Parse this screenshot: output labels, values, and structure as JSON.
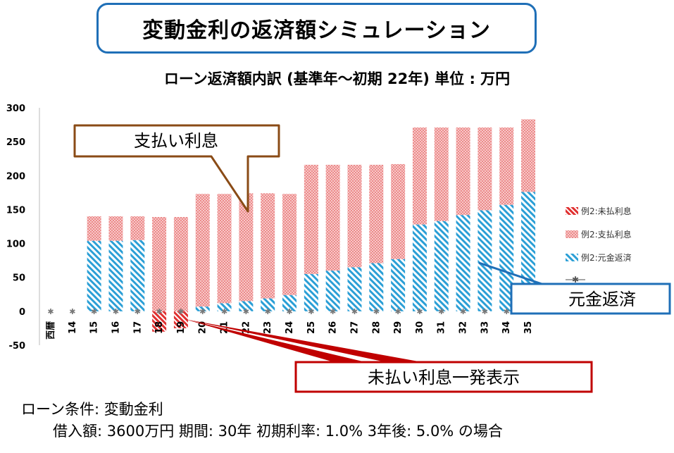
{
  "header": {
    "title": "変動金利の返済額シミュレーション"
  },
  "chart_data": {
    "type": "bar",
    "title": "ローン返済額内訳 (基準年～初期 22年) 単位 : 万円",
    "categories": [
      "西暦",
      "14",
      "15",
      "16",
      "17",
      "18",
      "19",
      "20",
      "21",
      "22",
      "23",
      "24",
      "25",
      "26",
      "27",
      "28",
      "29",
      "30",
      "31",
      "32",
      "33",
      "34",
      "35"
    ],
    "ylim": [
      -50,
      300
    ],
    "yticks": [
      -50,
      0,
      50,
      100,
      150,
      200,
      250,
      300
    ],
    "grid": false,
    "legend_position": "right",
    "series": [
      {
        "name": "例2:未払利息",
        "color": "#e03030",
        "pattern": "dense-diagonal",
        "values": [
          0,
          0,
          0,
          0,
          0,
          -30,
          -25,
          0,
          0,
          0,
          0,
          0,
          0,
          0,
          0,
          0,
          0,
          0,
          0,
          0,
          0,
          0,
          0
        ]
      },
      {
        "name": "例2:支払利息",
        "color": "#f2aaaa",
        "pattern": "dotted",
        "values": [
          0,
          0,
          36,
          36,
          35,
          139,
          139,
          166,
          161,
          159,
          155,
          149,
          161,
          156,
          151,
          145,
          140,
          143,
          138,
          129,
          122,
          114,
          107
        ]
      },
      {
        "name": "例2:元金返済",
        "color": "#2b9fd6",
        "pattern": "diagonal",
        "values": [
          0,
          0,
          104,
          104,
          105,
          0,
          0,
          7,
          12,
          15,
          19,
          24,
          55,
          60,
          65,
          71,
          77,
          128,
          133,
          142,
          149,
          157,
          176
        ]
      },
      {
        "name": "",
        "color": "#777777",
        "pattern": "marker-line",
        "values": [
          0,
          0,
          0,
          0,
          0,
          0,
          0,
          0,
          0,
          0,
          0,
          0,
          0,
          0,
          0,
          0,
          0,
          0,
          0,
          0,
          0,
          0,
          0
        ]
      }
    ],
    "annotations": [
      {
        "text": "支払い利息"
      },
      {
        "text": "未払い利息一発表示"
      },
      {
        "text": "元金返済"
      }
    ]
  },
  "conditions": {
    "line1": "ローン条件:  変動金利",
    "line2": "借入額: 3600万円  期間: 30年  初期利率: 1.0% 3年後: 5.0%  の場合"
  }
}
